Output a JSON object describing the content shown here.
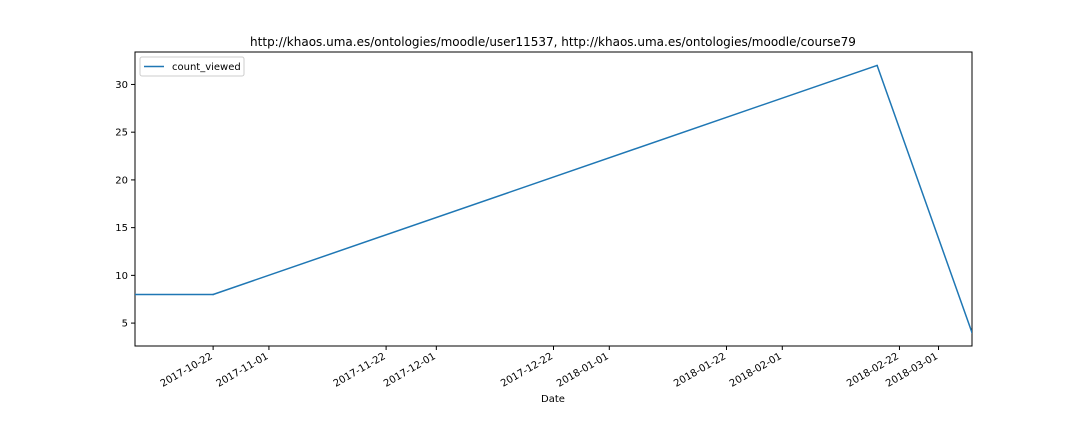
{
  "chart_data": {
    "type": "line",
    "title": "http://khaos.uma.es/ontologies/moodle/user11537, http://khaos.uma.es/ontologies/moodle/course79",
    "xlabel": "Date",
    "ylabel": "",
    "xlim": [
      "2017-10-08",
      "2018-03-07"
    ],
    "ylim": [
      2.6,
      33.4
    ],
    "x_ticks": [
      "2017-10-22",
      "2017-11-01",
      "2017-11-22",
      "2017-12-01",
      "2017-12-22",
      "2018-01-01",
      "2018-01-22",
      "2018-02-01",
      "2018-02-22",
      "2018-03-01"
    ],
    "y_ticks": [
      5,
      10,
      15,
      20,
      25,
      30
    ],
    "grid": false,
    "legend_position": "upper-left",
    "series": [
      {
        "name": "count_viewed",
        "color": "#1f77b4",
        "x": [
          "2017-10-08",
          "2017-10-22",
          "2018-02-18",
          "2018-03-07"
        ],
        "values": [
          8,
          8,
          32,
          4
        ]
      }
    ]
  }
}
